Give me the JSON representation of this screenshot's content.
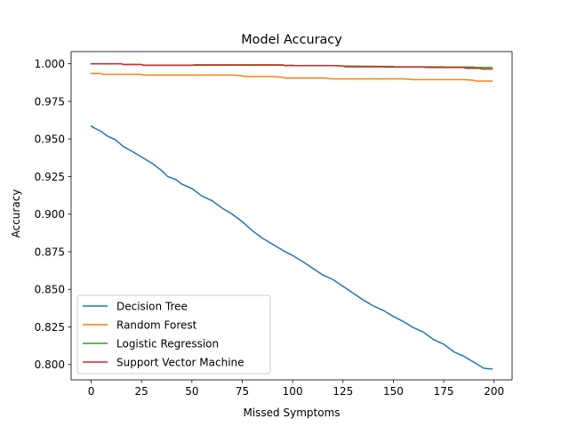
{
  "chart_data": {
    "type": "line",
    "title": "Model Accuracy",
    "xlabel": "Missed Symptoms",
    "ylabel": "Accuracy",
    "xlim": [
      -9.95,
      208.95
    ],
    "ylim": [
      0.7898,
      1.0081
    ],
    "xticks": [
      0,
      25,
      50,
      75,
      100,
      125,
      150,
      175,
      200
    ],
    "yticks": [
      0.8,
      0.825,
      0.85,
      0.875,
      0.9,
      0.925,
      0.95,
      0.975,
      1.0
    ],
    "ytick_labels": [
      "0.800",
      "0.825",
      "0.850",
      "0.875",
      "0.900",
      "0.925",
      "0.950",
      "0.975",
      "1.000"
    ],
    "grid": false,
    "legend_position": "lower-left",
    "series": [
      {
        "name": "Decision Tree",
        "color": "#1f77b4",
        "x": [
          0,
          2,
          5,
          8,
          12,
          16,
          20,
          25,
          30,
          35,
          38,
          42,
          45,
          50,
          55,
          60,
          65,
          70,
          75,
          80,
          85,
          90,
          95,
          100,
          105,
          110,
          115,
          120,
          125,
          130,
          135,
          140,
          145,
          150,
          155,
          160,
          165,
          170,
          175,
          180,
          185,
          190,
          195,
          199
        ],
        "values": [
          0.9585,
          0.957,
          0.955,
          0.952,
          0.9495,
          0.945,
          0.942,
          0.938,
          0.934,
          0.929,
          0.925,
          0.923,
          0.92,
          0.917,
          0.912,
          0.909,
          0.904,
          0.9,
          0.895,
          0.889,
          0.884,
          0.88,
          0.876,
          0.8725,
          0.8685,
          0.864,
          0.8595,
          0.8565,
          0.852,
          0.8475,
          0.843,
          0.839,
          0.836,
          0.832,
          0.8285,
          0.8245,
          0.8215,
          0.8165,
          0.8135,
          0.8085,
          0.8055,
          0.8015,
          0.7975,
          0.797
        ]
      },
      {
        "name": "Random Forest",
        "color": "#ff7f0e",
        "x": [
          0,
          5,
          6,
          25,
          26,
          70,
          75,
          76,
          90,
          95,
          96,
          115,
          120,
          121,
          155,
          160,
          161,
          185,
          190,
          191,
          199
        ],
        "values": [
          0.9935,
          0.9935,
          0.993,
          0.993,
          0.9925,
          0.9925,
          0.992,
          0.9915,
          0.9915,
          0.991,
          0.9905,
          0.9905,
          0.99,
          0.99,
          0.99,
          0.9895,
          0.9895,
          0.9895,
          0.989,
          0.9885,
          0.9885
        ]
      },
      {
        "name": "Logistic Regression",
        "color": "#2ca02c",
        "x": [
          0,
          15,
          16,
          25,
          26,
          100,
          101,
          120,
          125,
          126,
          150,
          151,
          175,
          176,
          190,
          191,
          199
        ],
        "values": [
          1.0,
          1.0,
          0.9995,
          0.9995,
          0.999,
          0.999,
          0.9988,
          0.9988,
          0.9985,
          0.9985,
          0.9982,
          0.998,
          0.998,
          0.9978,
          0.9978,
          0.9975,
          0.9975
        ]
      },
      {
        "name": "Support Vector Machine",
        "color": "#d62728",
        "x": [
          0,
          15,
          16,
          25,
          26,
          50,
          51,
          95,
          96,
          120,
          125,
          126,
          145,
          146,
          165,
          166,
          185,
          186,
          193,
          194,
          199
        ],
        "values": [
          1.0,
          1.0,
          0.9995,
          0.9995,
          0.999,
          0.999,
          0.9993,
          0.9993,
          0.9988,
          0.9988,
          0.9985,
          0.998,
          0.998,
          0.9978,
          0.9978,
          0.9975,
          0.9975,
          0.997,
          0.997,
          0.9965,
          0.9965
        ]
      }
    ]
  }
}
